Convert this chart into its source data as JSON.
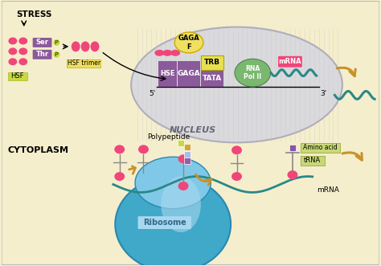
{
  "bg_color": "#f5eecc",
  "stress_label": "STRESS",
  "hsf_label": "HSF",
  "hsf_trimer_label": "HSF trimer",
  "nucleus_label": "NUCLEUS",
  "cytoplasm_label": "CYTOPLASM",
  "ribosome_label": "Ribosome",
  "mrna_label_top": "mRNA",
  "mrna_label_bottom": "mRNA",
  "polypeptide_label": "Polypeptide",
  "amino_acid_label": "Amino acid",
  "trna_label": "tRNA",
  "hse_label": "HSE",
  "gaga_label": "GAGA",
  "gagaf_label": "GAGA\nF",
  "trb_label": "TRB",
  "tata_label": "TATA",
  "rnapol_label": "RNA\nPol II",
  "ser_label": "Ser",
  "thr_label": "Thr",
  "five_prime": "5'",
  "three_prime": "3'",
  "pink": "#f0467a",
  "purple": "#8b5a9a",
  "gold": "#c8922a",
  "light_yellow": "#f0e060",
  "teal": "#2a8888",
  "blue_dark": "#40a8c8",
  "blue_light": "#80c8e8",
  "blue_pale": "#a8d8f0",
  "nucleus_fill": "#d8d8e0",
  "nucleus_stroke": "#a8a8b8",
  "trb_yellow": "#e8e050",
  "green_label": "#c8d840",
  "rnapol_green": "#7ab870"
}
